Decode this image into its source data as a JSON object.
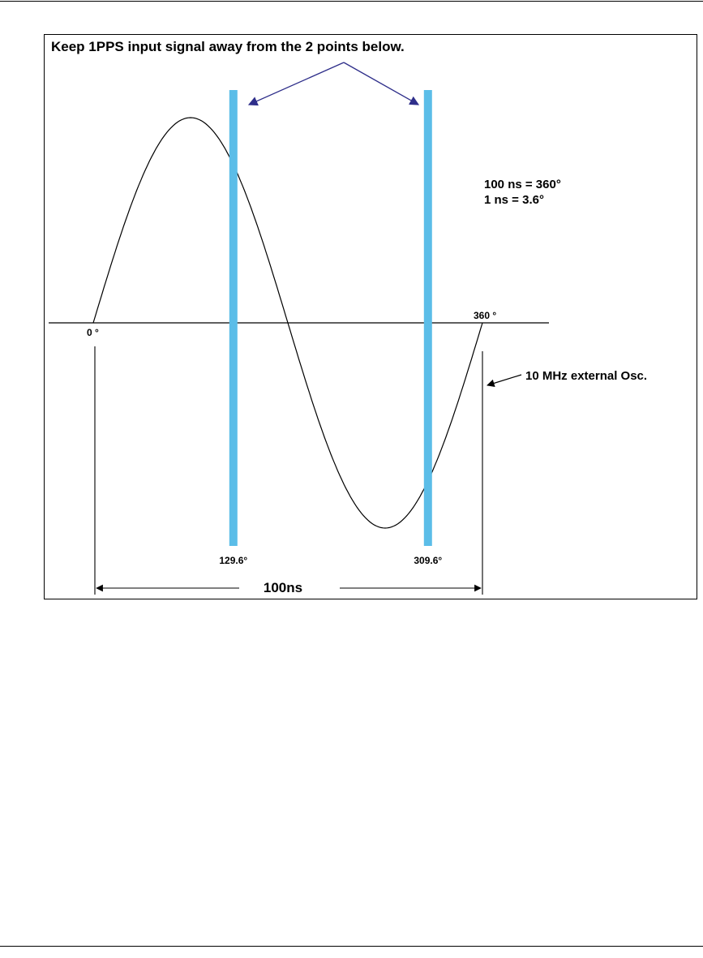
{
  "figure": {
    "instruction": "Keep 1PPS input signal away from the 2 points below.",
    "note_line1": "100 ns = 360°",
    "note_line2": "1 ns = 3.6°",
    "wave_label": "10 MHz external Osc.",
    "start_label": "0 °",
    "end_label": "360 °",
    "marker_labels": [
      "129.6°",
      "309.6°"
    ],
    "period_label": "100ns"
  },
  "colors": {
    "marker_bar": "#5bbde8",
    "pointer_arrow": "#2e2e8a",
    "line": "#000000"
  },
  "wave": {
    "start_deg": 0,
    "end_deg": 360,
    "marker_deg": [
      129.6,
      309.6
    ],
    "period_ns": 100
  }
}
